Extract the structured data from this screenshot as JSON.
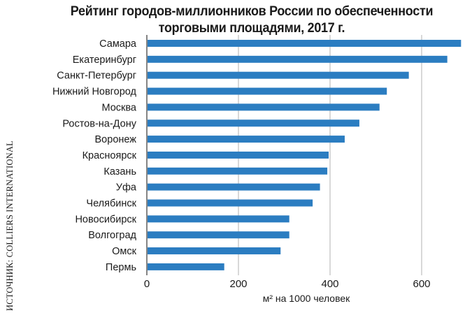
{
  "chart_data": {
    "type": "bar",
    "orientation": "horizontal",
    "title_lines": [
      "Рейтинг городов-миллионников России по обеспеченности",
      "торговыми площадями, 2017 г."
    ],
    "source": "ИСТОЧНИК: COLLIERS INTERNATIONAL",
    "xlabel": "м² на 1000 человек",
    "ylabel": "",
    "xlim": [
      0,
      690
    ],
    "xticks": [
      0,
      200,
      400,
      600
    ],
    "grid": "vertical",
    "bar_color": "#2b7dc1",
    "categories": [
      "Самара",
      "Екатеринбург",
      "Санкт-Петербург",
      "Нижний Новгород",
      "Москва",
      "Ростов-на-Дону",
      "Воронеж",
      "Красноярск",
      "Казань",
      "Уфа",
      "Челябинск",
      "Новосибирск",
      "Волгоград",
      "Омск",
      "Пермь"
    ],
    "values": [
      686,
      656,
      572,
      524,
      508,
      464,
      432,
      397,
      394,
      378,
      362,
      311,
      311,
      292,
      169
    ]
  }
}
